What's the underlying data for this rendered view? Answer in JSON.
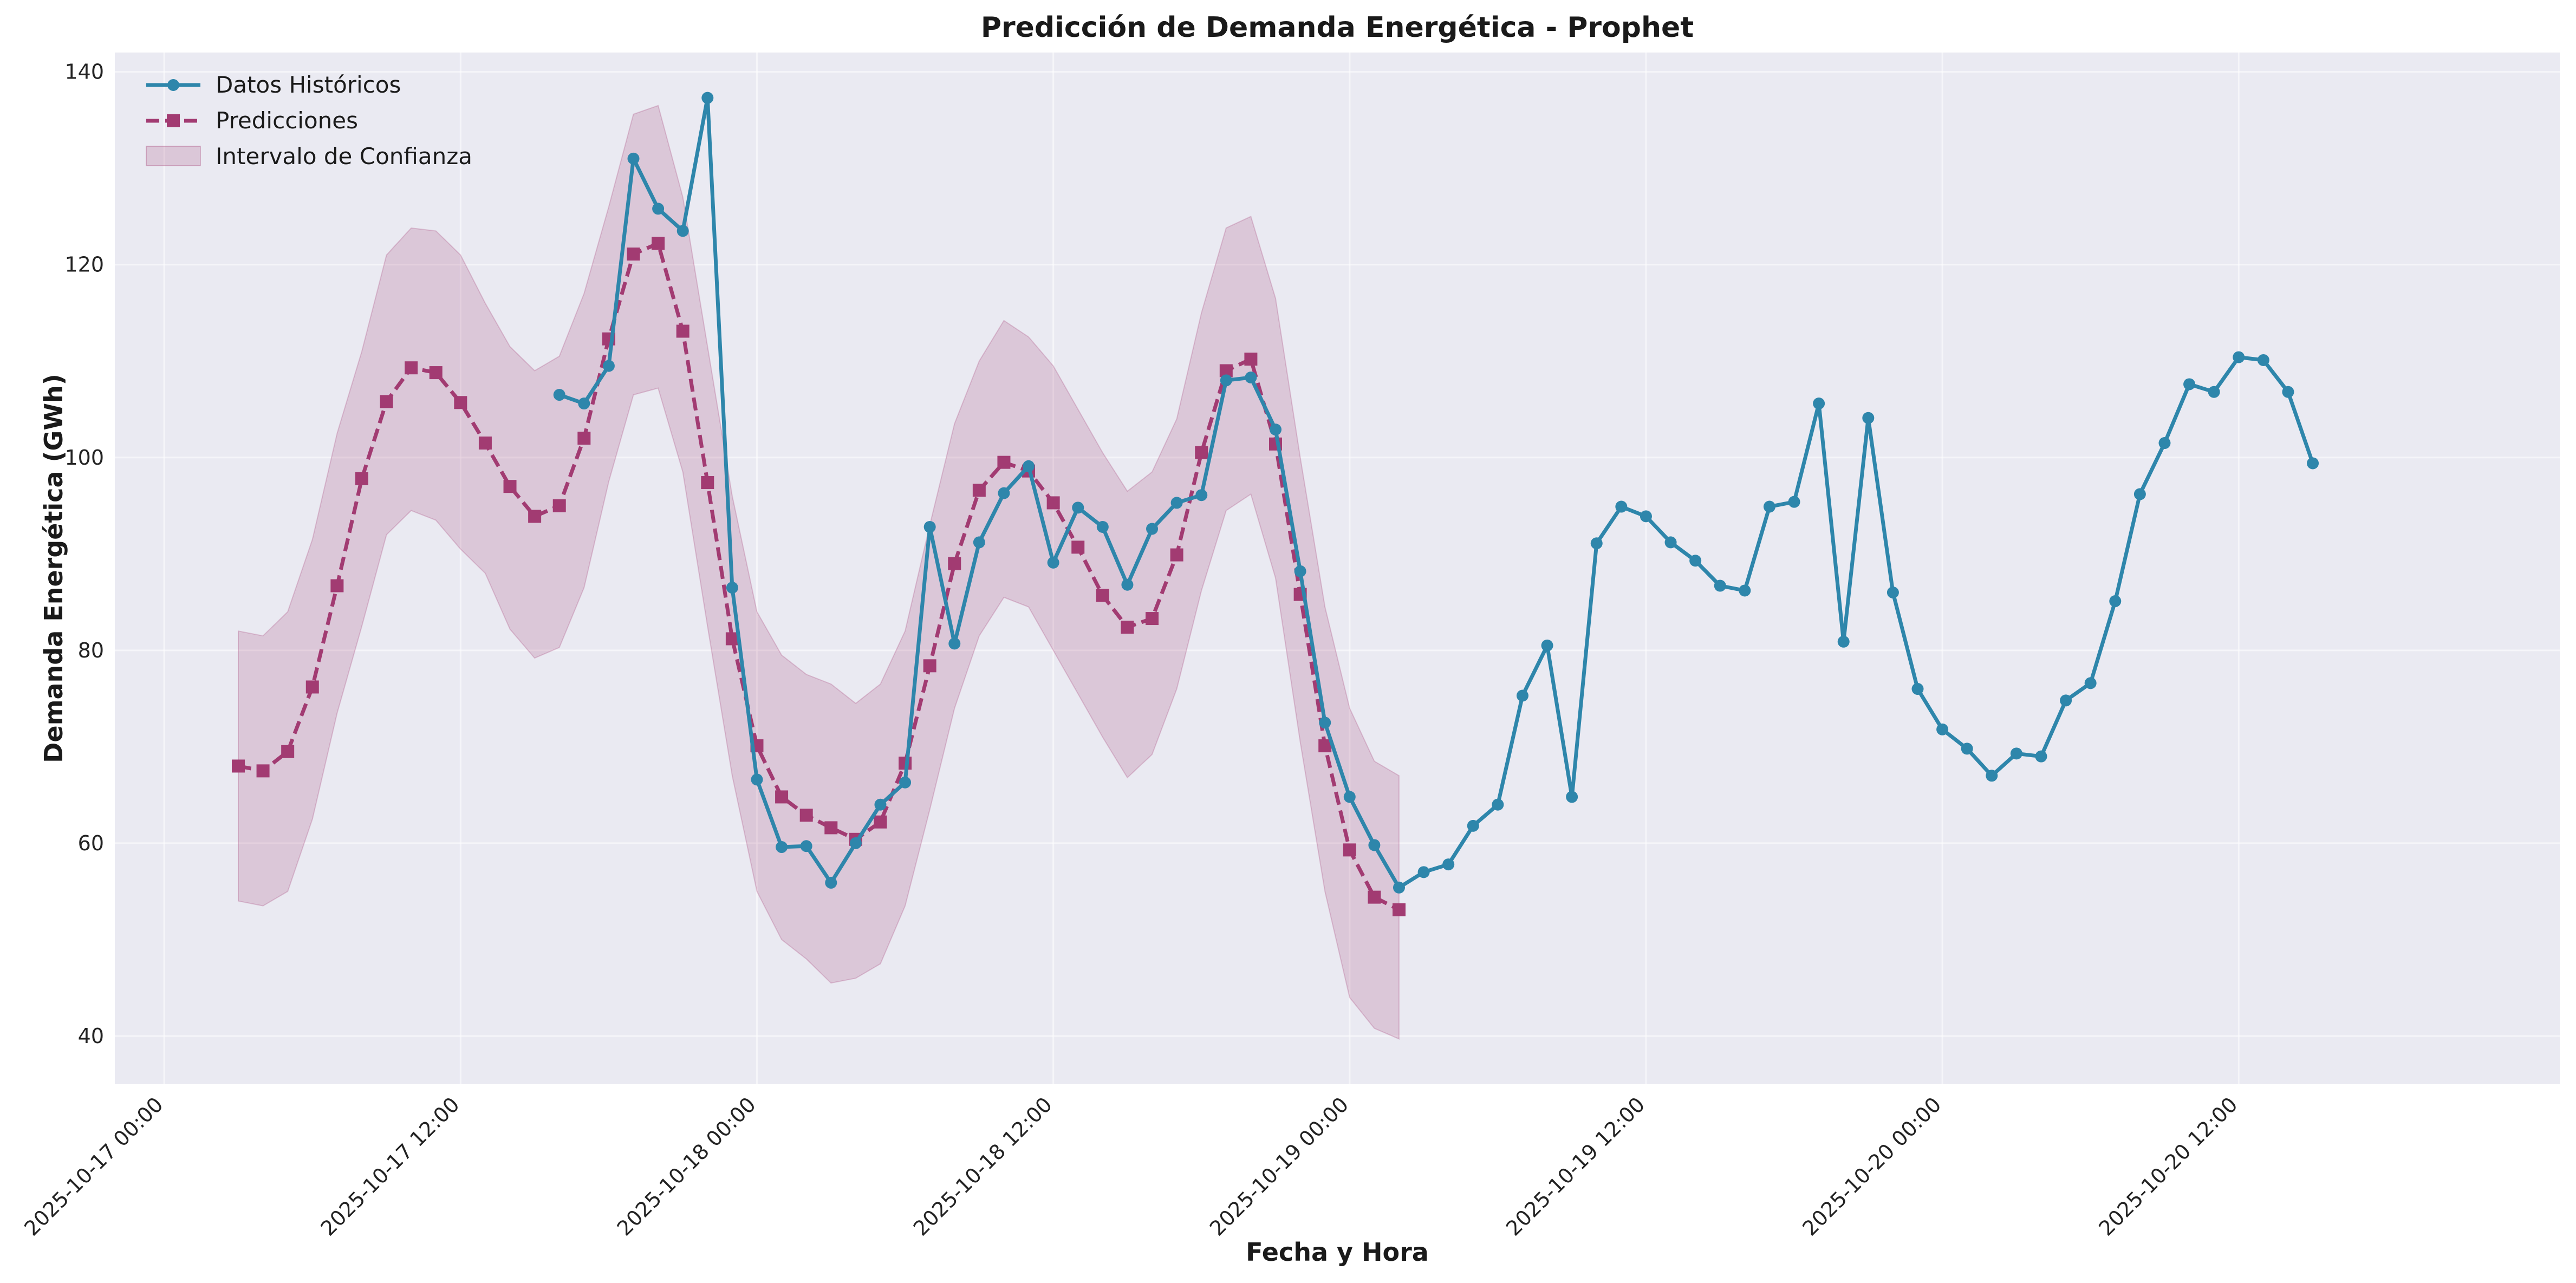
{
  "chart_data": {
    "type": "line",
    "title": "Predicción de Demanda Energética - Prophet",
    "xlabel": "Fecha y Hora",
    "ylabel": "Demanda Energética (GWh)",
    "ylim": [
      35,
      142
    ],
    "xlim": [
      "2025-10-16 22:00",
      "2025-10-21 01:00"
    ],
    "grid": true,
    "legend_position": "top-left",
    "x_ticks": [
      "2025-10-17 00:00",
      "2025-10-17 12:00",
      "2025-10-18 00:00",
      "2025-10-18 12:00",
      "2025-10-19 00:00",
      "2025-10-19 12:00",
      "2025-10-20 00:00",
      "2025-10-20 12:00"
    ],
    "y_ticks": [
      40,
      60,
      80,
      100,
      120,
      140
    ],
    "x_start": "2025-10-17 03:00",
    "x_step_hours": 1,
    "colors": {
      "historical": "#2e86ab",
      "prediction": "#a23b72",
      "interval": "#a23b72",
      "plot_bg": "#eaeaf2"
    },
    "series": [
      {
        "name": "Datos Históricos",
        "start": "2025-10-17 16:00",
        "values": [
          106.5,
          105.6,
          109.5,
          131.0,
          125.8,
          123.5,
          137.3,
          86.5,
          66.6,
          59.6,
          59.7,
          55.9,
          60.0,
          64.0,
          66.3,
          92.8,
          80.7,
          91.2,
          96.3,
          99.1,
          89.1,
          94.8,
          92.8,
          86.8,
          92.6,
          95.3,
          96.1,
          108.0,
          108.3,
          102.9,
          88.2,
          72.5,
          64.8,
          59.8,
          55.4,
          57.0,
          57.8,
          61.8,
          64.0,
          75.3,
          80.5,
          64.8,
          91.1,
          94.9,
          93.9,
          91.2,
          89.3,
          86.7,
          86.2,
          94.9,
          95.4,
          105.6,
          80.9,
          104.1,
          86.0,
          76.0,
          71.8,
          69.8,
          67.0,
          69.3,
          69.0,
          74.8,
          76.6,
          85.1,
          96.2,
          101.5,
          107.6,
          106.8,
          110.4,
          110.1,
          106.8,
          99.4
        ]
      },
      {
        "name": "Predicciones",
        "start": "2025-10-17 03:00",
        "values": [
          68.0,
          67.5,
          69.5,
          76.2,
          86.7,
          97.8,
          105.8,
          109.3,
          108.8,
          105.7,
          101.5,
          97.0,
          93.9,
          95.0,
          102.0,
          112.3,
          121.1,
          122.2,
          113.1,
          97.4,
          81.2,
          70.1,
          64.8,
          62.9,
          61.6,
          60.4,
          62.2,
          68.3,
          78.4,
          89.0,
          96.6,
          99.5,
          98.6,
          95.3,
          90.7,
          85.7,
          82.4,
          83.3,
          89.9,
          100.5,
          109.0,
          110.2,
          101.4,
          85.8,
          70.1,
          59.3,
          54.4,
          53.1
        ]
      }
    ],
    "interval": {
      "name": "Intervalo de Confianza",
      "start": "2025-10-17 03:00",
      "upper": [
        82.0,
        81.5,
        84.0,
        91.5,
        102.5,
        111.0,
        121.0,
        123.8,
        123.5,
        121.0,
        116.0,
        111.5,
        109.0,
        110.5,
        117.0,
        126.0,
        135.6,
        136.5,
        127.0,
        111.5,
        96.0,
        84.0,
        79.5,
        77.5,
        76.5,
        74.5,
        76.5,
        82.0,
        93.0,
        103.5,
        110.0,
        114.2,
        112.5,
        109.5,
        105.0,
        100.5,
        96.5,
        98.5,
        104.0,
        115.0,
        123.8,
        125.0,
        116.5,
        100.0,
        84.5,
        74.0,
        68.5,
        67.0
      ],
      "lower": [
        54.0,
        53.5,
        55.0,
        62.5,
        73.5,
        82.5,
        92.0,
        94.5,
        93.5,
        90.5,
        88.0,
        82.2,
        79.2,
        80.3,
        86.5,
        97.5,
        106.5,
        107.2,
        98.5,
        82.5,
        67.0,
        55.0,
        50.0,
        48.0,
        45.5,
        46.0,
        47.5,
        53.5,
        63.5,
        74.0,
        81.5,
        85.5,
        84.5,
        80.0,
        75.5,
        71.0,
        66.8,
        69.2,
        76.0,
        86.2,
        94.5,
        96.2,
        87.5,
        70.5,
        55.0,
        44.0,
        40.8,
        39.7
      ]
    }
  }
}
